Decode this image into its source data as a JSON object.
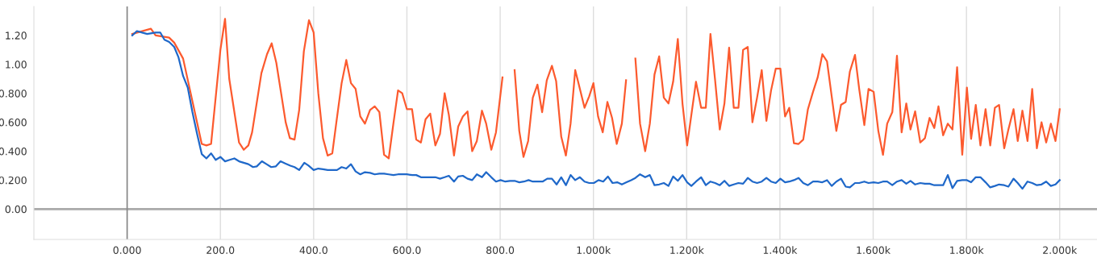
{
  "chart_data": {
    "type": "line",
    "xlim": [
      -200,
      2080
    ],
    "ylim": [
      -0.21,
      1.4
    ],
    "xticks": [
      {
        "value": 0,
        "label": "0.000"
      },
      {
        "value": 200,
        "label": "200.0"
      },
      {
        "value": 400,
        "label": "400.0"
      },
      {
        "value": 600,
        "label": "600.0"
      },
      {
        "value": 800,
        "label": "800.0"
      },
      {
        "value": 1000,
        "label": "1.000k"
      },
      {
        "value": 1200,
        "label": "1.200k"
      },
      {
        "value": 1400,
        "label": "1.400k"
      },
      {
        "value": 1600,
        "label": "1.600k"
      },
      {
        "value": 1800,
        "label": "1.800k"
      },
      {
        "value": 2000,
        "label": "2.000k"
      }
    ],
    "yticks": [
      {
        "value": 0,
        "label": "0.00"
      },
      {
        "value": 0.2,
        "label": "0.200"
      },
      {
        "value": 0.4,
        "label": "0.400"
      },
      {
        "value": 0.6,
        "label": "0.600"
      },
      {
        "value": 0.8,
        "label": "0.800"
      },
      {
        "value": 1.0,
        "label": "1.00"
      },
      {
        "value": 1.2,
        "label": "1.20"
      }
    ],
    "grid": "x",
    "ref_lines": [
      {
        "axis": "y",
        "value": 0,
        "color": "#aaaaaa"
      },
      {
        "axis": "x",
        "value": 0,
        "color": "#888888"
      }
    ],
    "series": [
      {
        "color": "#fc5a2e",
        "x": [
          11,
          51,
          61,
          90,
          101,
          120,
          139,
          160,
          170,
          180,
          200,
          210,
          219,
          240,
          250,
          260,
          268,
          288,
          300,
          310,
          320,
          340,
          349,
          359,
          369,
          379,
          390,
          400,
          410,
          420,
          430,
          440,
          450,
          460,
          470,
          480,
          490,
          500,
          510,
          521,
          531,
          541,
          551,
          561,
          571,
          581,
          590,
          600,
          611,
          620,
          630,
          640,
          650,
          661,
          671,
          681,
          690,
          701,
          710,
          720,
          730,
          740,
          750,
          761,
          770,
          781,
          791,
          805,
          819,
          831,
          841,
          850,
          860,
          870,
          880,
          890,
          900,
          911,
          920,
          931,
          941,
          951,
          961,
          971,
          981,
          991,
          1000,
          1010,
          1020,
          1030,
          1040,
          1050,
          1061,
          1070,
          1081,
          1090,
          1100,
          1111,
          1121,
          1131,
          1141,
          1151,
          1161,
          1171,
          1181,
          1191,
          1201,
          1210,
          1220,
          1231,
          1241,
          1251,
          1261,
          1271,
          1281,
          1291,
          1301,
          1311,
          1321,
          1331,
          1341,
          1351,
          1361,
          1371,
          1381,
          1391,
          1401,
          1411,
          1420,
          1430,
          1440,
          1450,
          1460,
          1471,
          1481,
          1491,
          1501,
          1511,
          1521,
          1531,
          1541,
          1550,
          1561,
          1570,
          1581,
          1590,
          1601,
          1611,
          1621,
          1630,
          1641,
          1651,
          1661,
          1671,
          1680,
          1690,
          1701,
          1711,
          1721,
          1731,
          1740,
          1750,
          1760,
          1770,
          1780,
          1791,
          1801,
          1810,
          1820,
          1830,
          1841,
          1851,
          1861,
          1870,
          1881,
          1890,
          1901,
          1910,
          1920,
          1931,
          1941,
          1951,
          1961,
          1971,
          1981,
          1991,
          2000
        ],
        "values": [
          1.21,
          1.246,
          1.2,
          1.185,
          1.15,
          1.04,
          0.76,
          0.45,
          0.44,
          0.45,
          1.1,
          1.315,
          0.9,
          0.46,
          0.41,
          0.44,
          0.53,
          0.94,
          1.07,
          1.145,
          1.01,
          0.6,
          0.49,
          0.48,
          0.685,
          1.09,
          1.305,
          1.22,
          0.8,
          0.49,
          0.37,
          0.385,
          0.63,
          0.87,
          1.03,
          0.87,
          0.83,
          0.64,
          0.59,
          0.685,
          0.71,
          0.67,
          0.375,
          0.35,
          0.59,
          0.82,
          0.8,
          0.69,
          0.69,
          0.48,
          0.46,
          0.62,
          0.66,
          0.44,
          0.52,
          0.8,
          0.65,
          0.37,
          0.57,
          0.64,
          0.675,
          0.4,
          0.47,
          0.68,
          0.59,
          0.41,
          0.53,
          0.91,
          null,
          0.96,
          0.54,
          0.36,
          0.47,
          0.77,
          0.86,
          0.67,
          0.89,
          0.99,
          0.885,
          0.5,
          0.37,
          0.59,
          0.96,
          0.83,
          0.7,
          0.78,
          0.87,
          0.64,
          0.53,
          0.74,
          0.63,
          0.45,
          0.59,
          0.89,
          null,
          1.04,
          0.59,
          0.4,
          0.59,
          0.93,
          1.055,
          0.77,
          0.73,
          0.88,
          1.175,
          0.73,
          0.44,
          0.65,
          0.88,
          0.7,
          0.7,
          1.21,
          0.89,
          0.55,
          0.73,
          1.115,
          0.7,
          0.7,
          1.1,
          1.12,
          0.6,
          0.77,
          0.96,
          0.61,
          0.82,
          0.97,
          0.97,
          0.64,
          0.7,
          0.455,
          0.45,
          0.48,
          0.69,
          0.81,
          0.91,
          1.07,
          1.02,
          0.78,
          0.54,
          0.72,
          0.74,
          0.95,
          1.065,
          0.83,
          0.58,
          0.83,
          0.81,
          0.54,
          0.375,
          0.59,
          0.67,
          1.06,
          0.53,
          0.73,
          0.55,
          0.675,
          0.46,
          0.49,
          0.63,
          0.56,
          0.71,
          0.51,
          0.59,
          0.55,
          0.98,
          0.375,
          0.84,
          0.485,
          0.72,
          0.44,
          0.69,
          0.44,
          0.7,
          0.72,
          0.42,
          0.55,
          0.69,
          0.47,
          0.68,
          0.47,
          0.83,
          0.42,
          0.6,
          0.46,
          0.59,
          0.47,
          0.69
        ]
      },
      {
        "color": "#1f68c9",
        "x": [
          11,
          21,
          32,
          43,
          61,
          71,
          80,
          90,
          101,
          110,
          120,
          130,
          140,
          150,
          160,
          170,
          180,
          190,
          200,
          210,
          220,
          230,
          240,
          250,
          260,
          270,
          278,
          289,
          299,
          309,
          319,
          329,
          339,
          350,
          359,
          369,
          380,
          389,
          400,
          410,
          420,
          430,
          440,
          450,
          460,
          470,
          480,
          490,
          500,
          510,
          521,
          531,
          541,
          551,
          561,
          571,
          581,
          590,
          600,
          611,
          620,
          630,
          640,
          650,
          661,
          671,
          681,
          690,
          701,
          710,
          720,
          730,
          740,
          750,
          761,
          770,
          781,
          791,
          801,
          811,
          821,
          831,
          841,
          851,
          861,
          870,
          880,
          891,
          901,
          911,
          921,
          931,
          941,
          951,
          961,
          971,
          981,
          991,
          1001,
          1011,
          1021,
          1031,
          1041,
          1051,
          1061,
          1071,
          1081,
          1090,
          1100,
          1111,
          1121,
          1131,
          1141,
          1151,
          1161,
          1171,
          1181,
          1191,
          1201,
          1210,
          1220,
          1231,
          1241,
          1251,
          1261,
          1271,
          1281,
          1291,
          1301,
          1311,
          1321,
          1331,
          1341,
          1351,
          1361,
          1371,
          1381,
          1391,
          1401,
          1411,
          1420,
          1430,
          1440,
          1450,
          1460,
          1471,
          1481,
          1491,
          1501,
          1511,
          1521,
          1531,
          1541,
          1550,
          1561,
          1570,
          1581,
          1590,
          1601,
          1611,
          1621,
          1630,
          1641,
          1651,
          1661,
          1671,
          1680,
          1690,
          1701,
          1711,
          1721,
          1731,
          1740,
          1750,
          1760,
          1770,
          1780,
          1791,
          1801,
          1810,
          1820,
          1830,
          1841,
          1851,
          1861,
          1870,
          1881,
          1890,
          1901,
          1910,
          1920,
          1931,
          1941,
          1951,
          1961,
          1971,
          1981,
          1991,
          2000
        ],
        "values": [
          1.2,
          1.23,
          1.22,
          1.21,
          1.22,
          1.22,
          1.17,
          1.155,
          1.12,
          1.05,
          0.92,
          0.84,
          0.67,
          0.52,
          0.38,
          0.35,
          0.385,
          0.34,
          0.36,
          0.33,
          0.34,
          0.35,
          0.33,
          0.32,
          0.31,
          0.29,
          0.295,
          0.33,
          0.31,
          0.29,
          0.295,
          0.33,
          0.315,
          0.3,
          0.29,
          0.27,
          0.32,
          0.3,
          0.27,
          0.28,
          0.275,
          0.27,
          0.27,
          0.27,
          0.29,
          0.28,
          0.31,
          0.26,
          0.24,
          0.255,
          0.25,
          0.24,
          0.245,
          0.245,
          0.24,
          0.235,
          0.24,
          0.24,
          0.24,
          0.235,
          0.235,
          0.22,
          0.22,
          0.22,
          0.22,
          0.21,
          0.22,
          0.23,
          0.19,
          0.225,
          0.23,
          0.21,
          0.2,
          0.24,
          0.22,
          0.255,
          0.22,
          0.19,
          0.2,
          0.19,
          0.195,
          0.195,
          0.185,
          0.19,
          0.2,
          0.19,
          0.19,
          0.19,
          0.21,
          0.21,
          0.17,
          0.22,
          0.165,
          0.235,
          0.2,
          0.22,
          0.19,
          0.18,
          0.18,
          0.2,
          0.19,
          0.225,
          0.18,
          0.185,
          0.17,
          0.185,
          0.2,
          0.215,
          0.24,
          0.22,
          0.235,
          0.165,
          0.17,
          0.18,
          0.16,
          0.225,
          0.195,
          0.235,
          0.185,
          0.16,
          0.19,
          0.22,
          0.165,
          0.19,
          0.18,
          0.165,
          0.195,
          0.16,
          0.17,
          0.18,
          0.175,
          0.215,
          0.19,
          0.18,
          0.19,
          0.215,
          0.19,
          0.18,
          0.21,
          0.185,
          0.19,
          0.2,
          0.215,
          0.18,
          0.165,
          0.19,
          0.19,
          0.185,
          0.2,
          0.16,
          0.19,
          0.21,
          0.155,
          0.15,
          0.18,
          0.18,
          0.19,
          0.18,
          0.185,
          0.18,
          0.19,
          0.19,
          0.165,
          0.19,
          0.2,
          0.175,
          0.195,
          0.17,
          0.18,
          0.175,
          0.175,
          0.165,
          0.165,
          0.165,
          0.235,
          0.145,
          0.195,
          0.2,
          0.2,
          0.185,
          0.22,
          0.22,
          0.185,
          0.15,
          0.16,
          0.17,
          0.165,
          0.155,
          0.21,
          0.18,
          0.14,
          0.19,
          0.18,
          0.165,
          0.17,
          0.19,
          0.16,
          0.17,
          0.2
        ]
      }
    ]
  }
}
